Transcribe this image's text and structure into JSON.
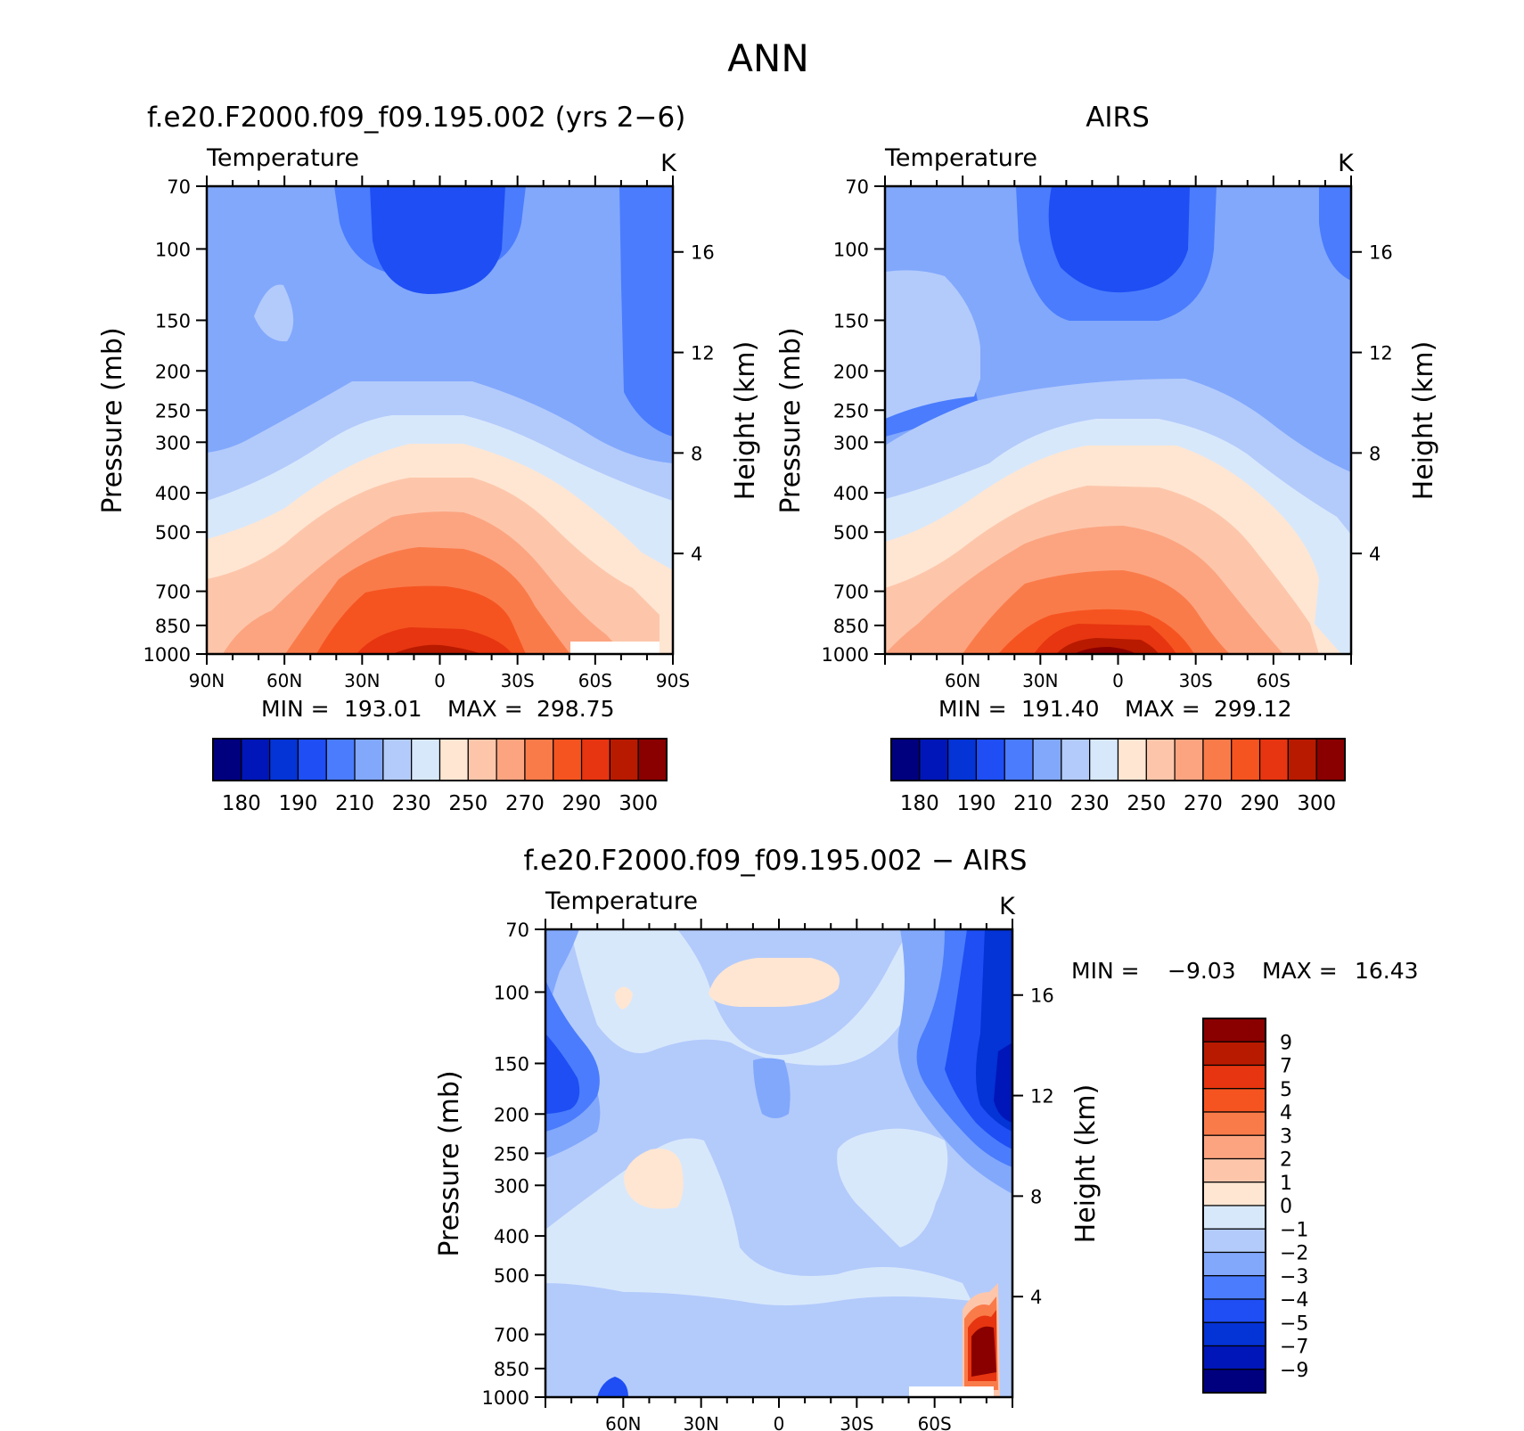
{
  "page": {
    "title": "ANN"
  },
  "colors": {
    "ramp": [
      "#00007f",
      "#0016b8",
      "#0433d6",
      "#1e4ef4",
      "#4a7cfd",
      "#82a8fc",
      "#b3cbfb",
      "#d8e8fb",
      "#ffe6d2",
      "#fdc6ab",
      "#fca480",
      "#fa7b4a",
      "#f55420",
      "#e63510",
      "#b81a00",
      "#8a0000"
    ]
  },
  "chart_data": [
    {
      "type": "heatmap",
      "title": "f.e20.F2000.f09_f09.195.002 (yrs 2−6)",
      "variable": "Temperature",
      "units": "K",
      "ylabel": "Pressure (mb)",
      "y2label": "Height (km)",
      "yticks": [
        "70",
        "100",
        "150",
        "200",
        "250",
        "300",
        "400",
        "500",
        "700",
        "850",
        "1000"
      ],
      "y2ticks": [
        "16",
        "12",
        "8",
        "4"
      ],
      "xticks": [
        "90N",
        "60N",
        "30N",
        "0",
        "30S",
        "60S",
        "90S"
      ],
      "stats": {
        "min_label": "MIN =",
        "min": "193.01",
        "max_label": "MAX =",
        "max": "298.75"
      },
      "colorbar": {
        "orientation": "horizontal",
        "labels": [
          "180",
          "190",
          "210",
          "230",
          "250",
          "270",
          "290",
          "300"
        ]
      }
    },
    {
      "type": "heatmap",
      "title": "AIRS",
      "variable": "Temperature",
      "units": "K",
      "ylabel": "Pressure (mb)",
      "y2label": "Height (km)",
      "yticks": [
        "70",
        "100",
        "150",
        "200",
        "250",
        "300",
        "400",
        "500",
        "700",
        "850",
        "1000"
      ],
      "y2ticks": [
        "16",
        "12",
        "8",
        "4"
      ],
      "xticks": [
        "60N",
        "30N",
        "0",
        "30S",
        "60S"
      ],
      "stats": {
        "min_label": "MIN =",
        "min": "191.40",
        "max_label": "MAX =",
        "max": "299.12"
      },
      "colorbar": {
        "orientation": "horizontal",
        "labels": [
          "180",
          "190",
          "210",
          "230",
          "250",
          "270",
          "290",
          "300"
        ]
      }
    },
    {
      "type": "heatmap",
      "title": "f.e20.F2000.f09_f09.195.002 − AIRS",
      "variable": "Temperature",
      "units": "K",
      "ylabel": "Pressure (mb)",
      "y2label": "Height (km)",
      "yticks": [
        "70",
        "100",
        "150",
        "200",
        "250",
        "300",
        "400",
        "500",
        "700",
        "850",
        "1000"
      ],
      "y2ticks": [
        "16",
        "12",
        "8",
        "4"
      ],
      "xticks": [
        "60N",
        "30N",
        "0",
        "30S",
        "60S"
      ],
      "stats": {
        "min_label": "MIN =",
        "min": "−9.03",
        "max_label": "MAX =",
        "max": "16.43"
      },
      "colorbar": {
        "orientation": "vertical",
        "labels": [
          "9",
          "7",
          "5",
          "4",
          "3",
          "2",
          "1",
          "0",
          "−1",
          "−2",
          "−3",
          "−4",
          "−5",
          "−7",
          "−9"
        ]
      }
    }
  ]
}
